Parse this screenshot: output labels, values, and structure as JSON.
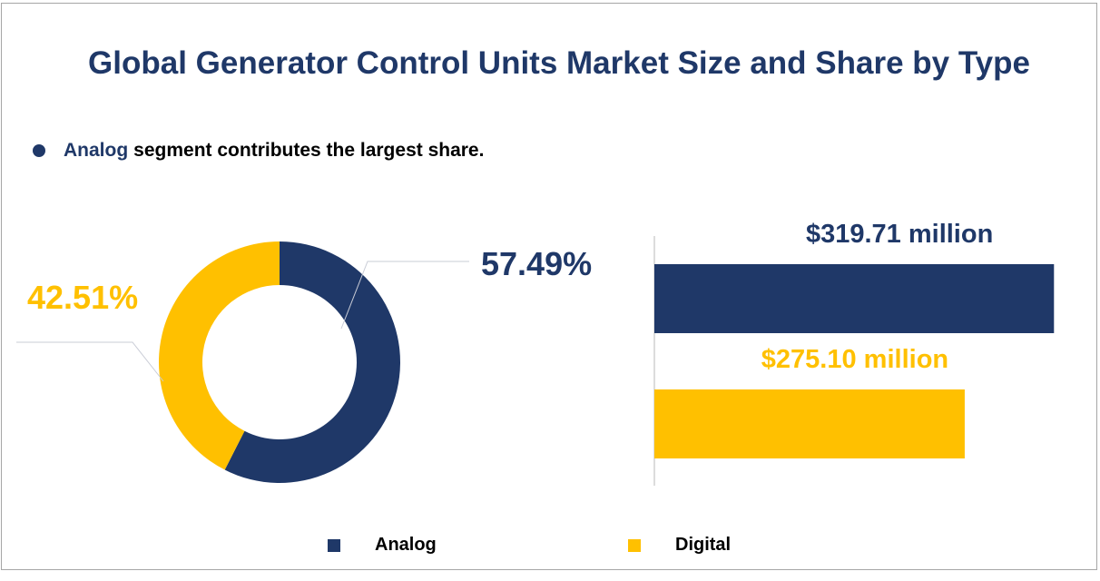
{
  "title": "Global Generator Control Units Market Size and Share by Type",
  "note": {
    "highlight": "Analog",
    "text": "segment contributes the largest share."
  },
  "colors": {
    "Analog": "#1f3868",
    "Digital": "#ffc000"
  },
  "chart_data": [
    {
      "type": "pie",
      "variant": "donut",
      "categories": [
        "Analog",
        "Digital"
      ],
      "values": [
        57.49,
        42.51
      ],
      "labels": [
        "57.49%",
        "42.51%"
      ]
    },
    {
      "type": "bar",
      "orientation": "horizontal",
      "categories": [
        "Analog",
        "Digital"
      ],
      "values": [
        319.71,
        275.1
      ],
      "labels": [
        "$319.71 million",
        "$275.10 million"
      ],
      "xlim": [
        120,
        335
      ],
      "grid": false
    }
  ],
  "legend": [
    {
      "name": "Analog"
    },
    {
      "name": "Digital"
    }
  ]
}
